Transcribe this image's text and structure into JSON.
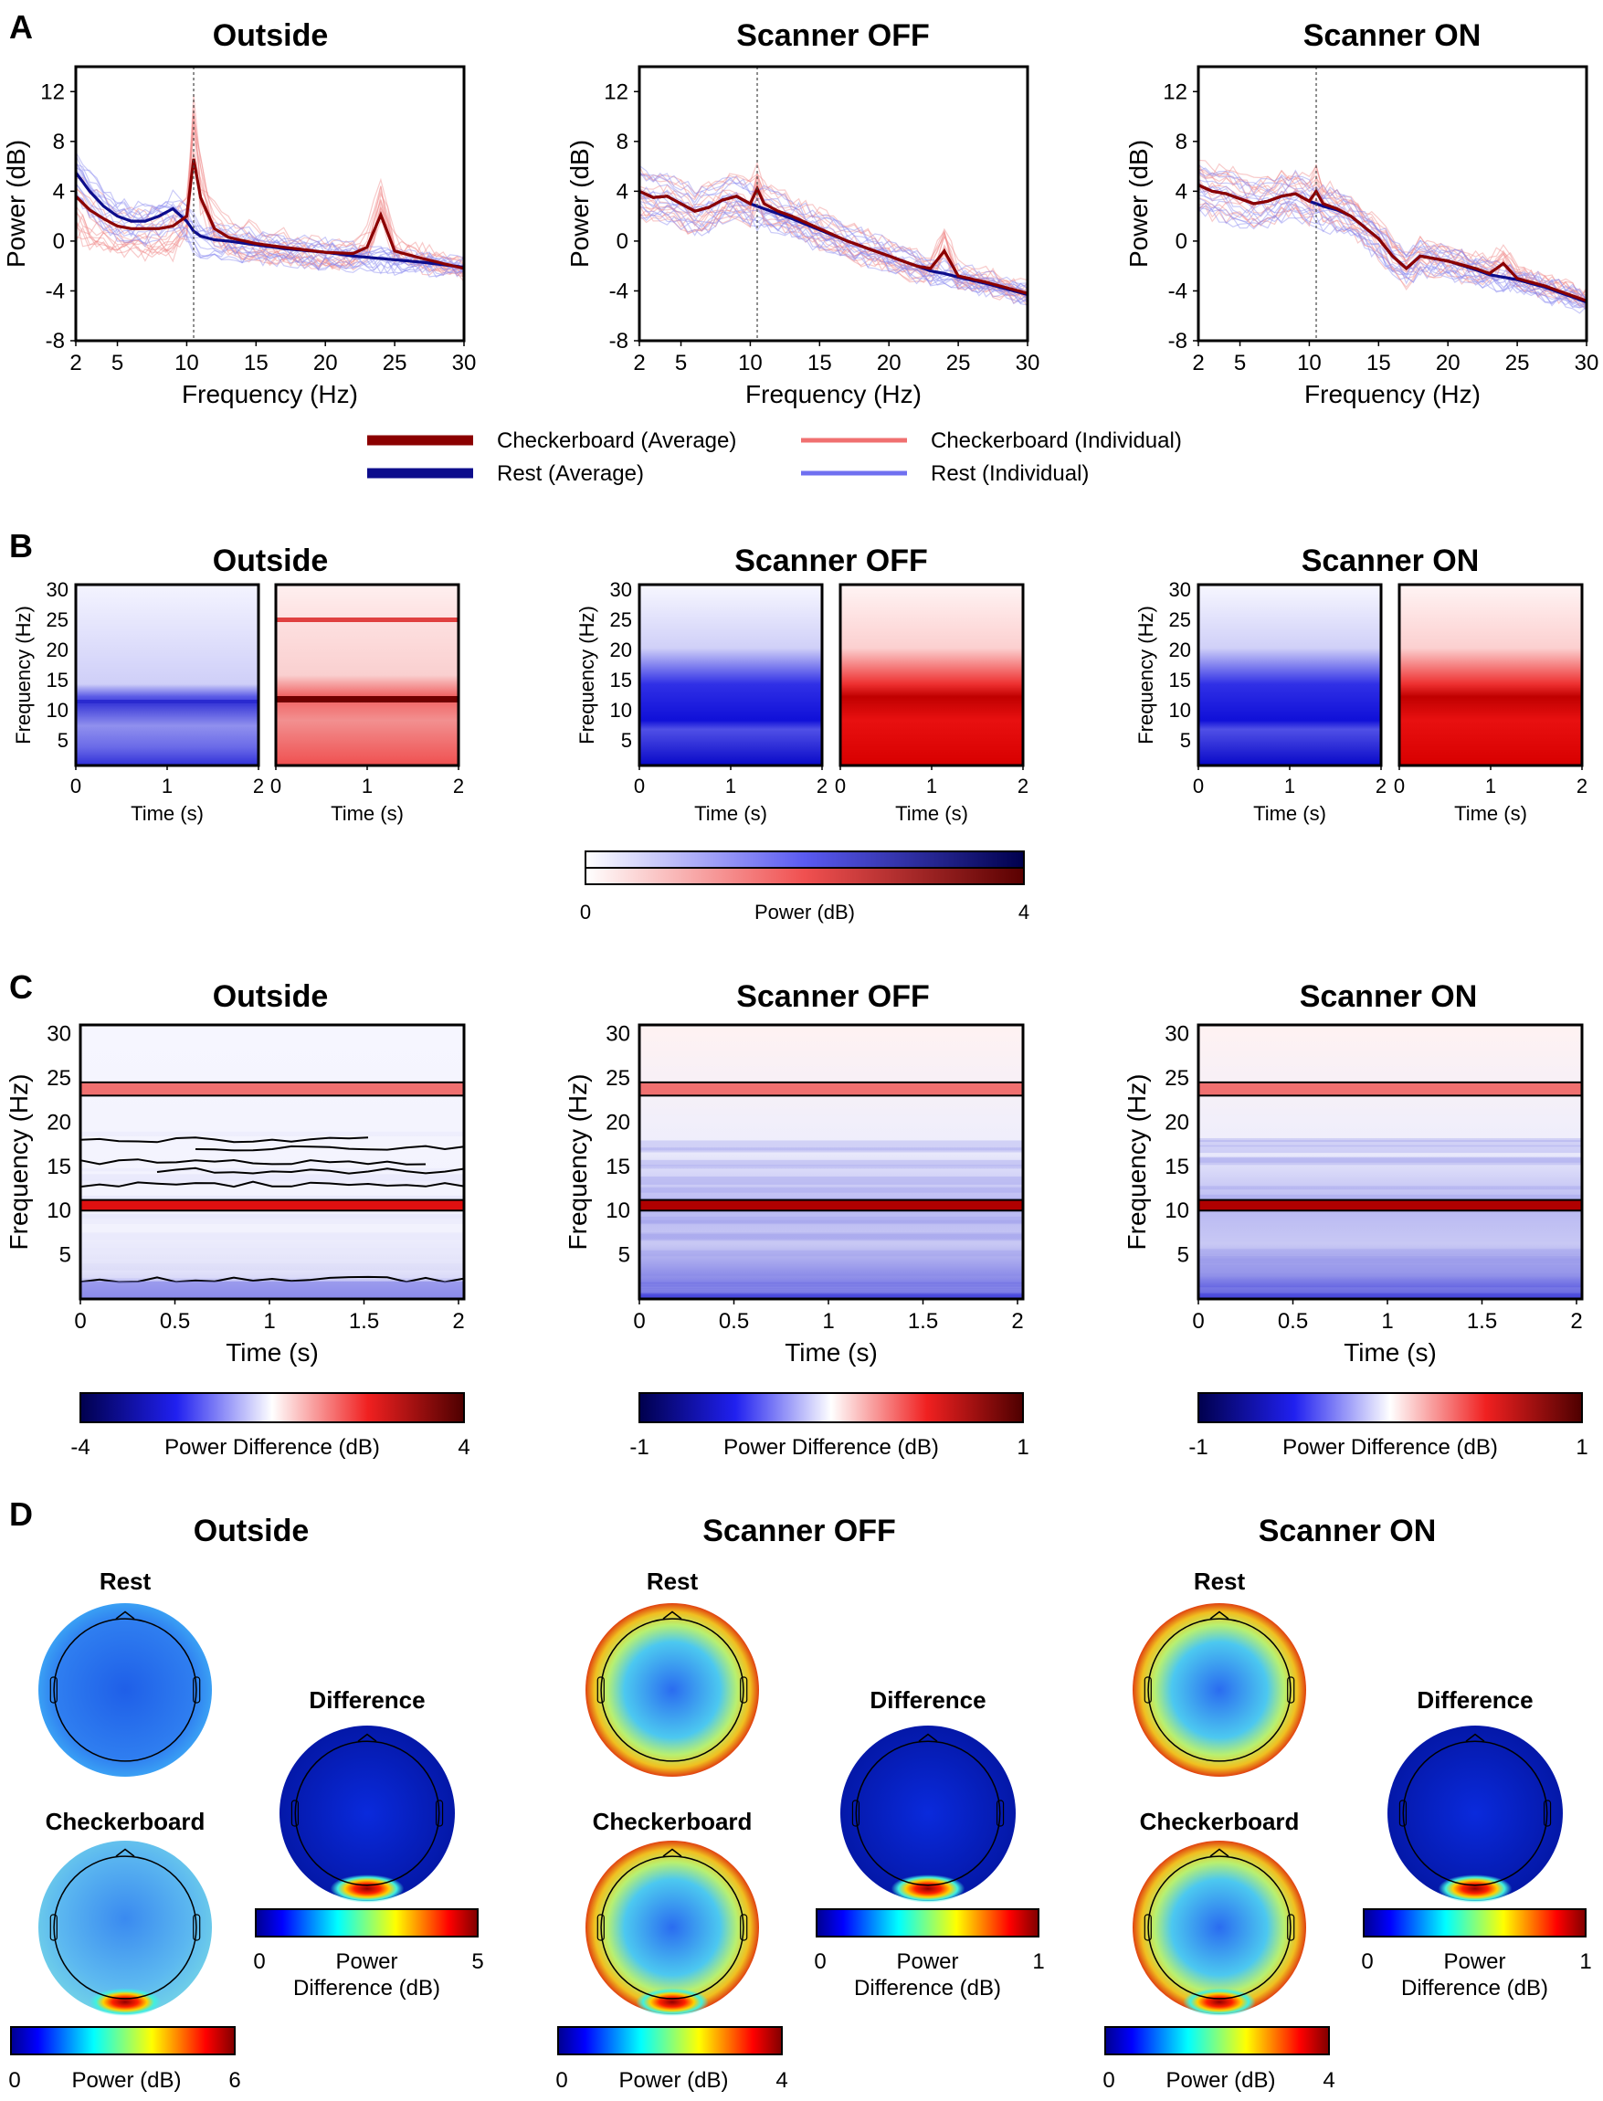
{
  "panels": [
    "A",
    "B",
    "C",
    "D"
  ],
  "conditions": [
    "Outside",
    "Scanner OFF",
    "Scanner ON"
  ],
  "colors": {
    "checker_avg": "#8b0000",
    "rest_avg": "#0d0d8c",
    "checker_ind": "#f08a8a",
    "rest_ind": "#8a8af0",
    "blue": "#0000cc",
    "red": "#d40000"
  },
  "legend": {
    "checker_avg": "Checkerboard (Average)",
    "rest_avg": "Rest (Average)",
    "checker_ind": "Checkerboard (Individual)",
    "rest_ind": "Rest (Individual)"
  },
  "panel_b": {
    "ylabel": "Frequency (Hz)",
    "xlabel": "Time (s)",
    "yticks": [
      "30",
      "25",
      "20",
      "15",
      "10",
      "5"
    ],
    "xticks": [
      "0",
      "1",
      "2"
    ],
    "colorbar": {
      "min": "0",
      "max": "4",
      "label": "Power (dB)"
    }
  },
  "panel_c": {
    "ylabel": "Frequency (Hz)",
    "xlabel": "Time (s)",
    "yticks": [
      "30",
      "25",
      "20",
      "15",
      "10",
      "5"
    ],
    "xticks": [
      "0",
      "0.5",
      "1",
      "1.5",
      "2"
    ],
    "colorbars": [
      {
        "min": "-4",
        "max": "4",
        "label": "Power Difference (dB)"
      },
      {
        "min": "-1",
        "max": "1",
        "label": "Power Difference (dB)"
      },
      {
        "min": "-1",
        "max": "1",
        "label": "Power Difference (dB)"
      }
    ]
  },
  "panel_d": {
    "rest_label": "Rest",
    "checker_label": "Checkerboard",
    "diff_label": "Difference",
    "power_colorbars": [
      {
        "min": "0",
        "max": "6",
        "label": "Power (dB)"
      },
      {
        "min": "0",
        "max": "4",
        "label": "Power (dB)"
      },
      {
        "min": "0",
        "max": "4",
        "label": "Power (dB)"
      }
    ],
    "diff_colorbars": [
      {
        "min": "0",
        "max": "5",
        "label1": "Power",
        "label2": "Difference (dB)"
      },
      {
        "min": "0",
        "max": "1",
        "label1": "Power",
        "label2": "Difference (dB)"
      },
      {
        "min": "0",
        "max": "1",
        "label1": "Power",
        "label2": "Difference (dB)"
      }
    ]
  },
  "chart_data": [
    {
      "type": "line",
      "panel": "A",
      "title": "Outside",
      "xlabel": "Frequency (Hz)",
      "ylabel": "Power (dB)",
      "xlim": [
        2,
        30
      ],
      "ylim": [
        -8,
        14
      ],
      "xticks": [
        2,
        5,
        10,
        15,
        20,
        25,
        30
      ],
      "yticks": [
        12,
        8,
        4,
        0,
        -4,
        -8
      ],
      "vline": 10.5,
      "x": [
        2,
        3,
        4,
        5,
        6,
        7,
        8,
        9,
        10,
        10.5,
        11,
        12,
        13,
        15,
        17,
        20,
        22,
        23,
        24,
        25,
        27,
        30
      ],
      "series": [
        {
          "name": "Checkerboard (Average)",
          "values": [
            3.6,
            2.5,
            1.8,
            1.2,
            1.0,
            1.0,
            1.0,
            1.2,
            2.0,
            6.6,
            3.5,
            1.0,
            0.3,
            -0.2,
            -0.5,
            -0.9,
            -1.0,
            -0.5,
            2.1,
            -0.8,
            -1.4,
            -2.2
          ]
        },
        {
          "name": "Rest (Average)",
          "values": [
            5.5,
            4.0,
            2.8,
            2.0,
            1.6,
            1.6,
            2.0,
            2.6,
            1.6,
            0.8,
            0.4,
            0.1,
            0.0,
            -0.3,
            -0.6,
            -0.9,
            -1.2,
            -1.3,
            -1.4,
            -1.5,
            -1.7,
            -2.1
          ]
        }
      ]
    },
    {
      "type": "line",
      "panel": "A",
      "title": "Scanner OFF",
      "xlabel": "Frequency (Hz)",
      "ylabel": "Power (dB)",
      "xlim": [
        2,
        30
      ],
      "ylim": [
        -8,
        14
      ],
      "xticks": [
        2,
        5,
        10,
        15,
        20,
        25,
        30
      ],
      "yticks": [
        12,
        8,
        4,
        0,
        -4,
        -8
      ],
      "vline": 10.5,
      "x": [
        2,
        3,
        4,
        5,
        6,
        7,
        8,
        9,
        10,
        10.5,
        11,
        12,
        13,
        15,
        17,
        20,
        22,
        23,
        24,
        25,
        27,
        30
      ],
      "series": [
        {
          "name": "Checkerboard (Average)",
          "values": [
            4.0,
            3.5,
            3.6,
            3.0,
            2.4,
            2.7,
            3.3,
            3.6,
            3.0,
            4.2,
            3.0,
            2.4,
            2.0,
            1.0,
            0.0,
            -1.2,
            -2.0,
            -2.2,
            -0.8,
            -2.8,
            -3.3,
            -4.2
          ]
        },
        {
          "name": "Rest (Average)",
          "values": [
            4.0,
            3.5,
            3.6,
            3.0,
            2.4,
            2.7,
            3.3,
            3.6,
            3.0,
            2.8,
            2.6,
            2.2,
            1.8,
            0.9,
            0.0,
            -1.2,
            -2.0,
            -2.4,
            -2.6,
            -2.9,
            -3.4,
            -4.3
          ]
        }
      ]
    },
    {
      "type": "line",
      "panel": "A",
      "title": "Scanner ON",
      "xlabel": "Frequency (Hz)",
      "ylabel": "Power (dB)",
      "xlim": [
        2,
        30
      ],
      "ylim": [
        -8,
        14
      ],
      "xticks": [
        2,
        5,
        10,
        15,
        20,
        25,
        30
      ],
      "yticks": [
        12,
        8,
        4,
        0,
        -4,
        -8
      ],
      "vline": 10.5,
      "x": [
        2,
        3,
        4,
        5,
        6,
        7,
        8,
        9,
        10,
        10.5,
        11,
        12,
        13,
        15,
        16,
        17,
        18,
        20,
        22,
        23,
        24,
        25,
        27,
        30
      ],
      "series": [
        {
          "name": "Checkerboard (Average)",
          "values": [
            4.5,
            4.0,
            3.8,
            3.4,
            3.0,
            3.2,
            3.6,
            3.8,
            3.2,
            4.0,
            3.0,
            2.6,
            2.0,
            0.2,
            -1.2,
            -2.2,
            -1.2,
            -1.6,
            -2.2,
            -2.6,
            -1.8,
            -3.0,
            -3.6,
            -4.8
          ]
        },
        {
          "name": "Rest (Average)",
          "values": [
            4.5,
            4.0,
            3.8,
            3.4,
            3.0,
            3.2,
            3.6,
            3.8,
            3.2,
            3.0,
            2.8,
            2.5,
            2.0,
            0.2,
            -1.2,
            -2.2,
            -1.2,
            -1.6,
            -2.3,
            -2.7,
            -2.9,
            -3.1,
            -3.7,
            -4.9
          ]
        }
      ]
    }
  ]
}
